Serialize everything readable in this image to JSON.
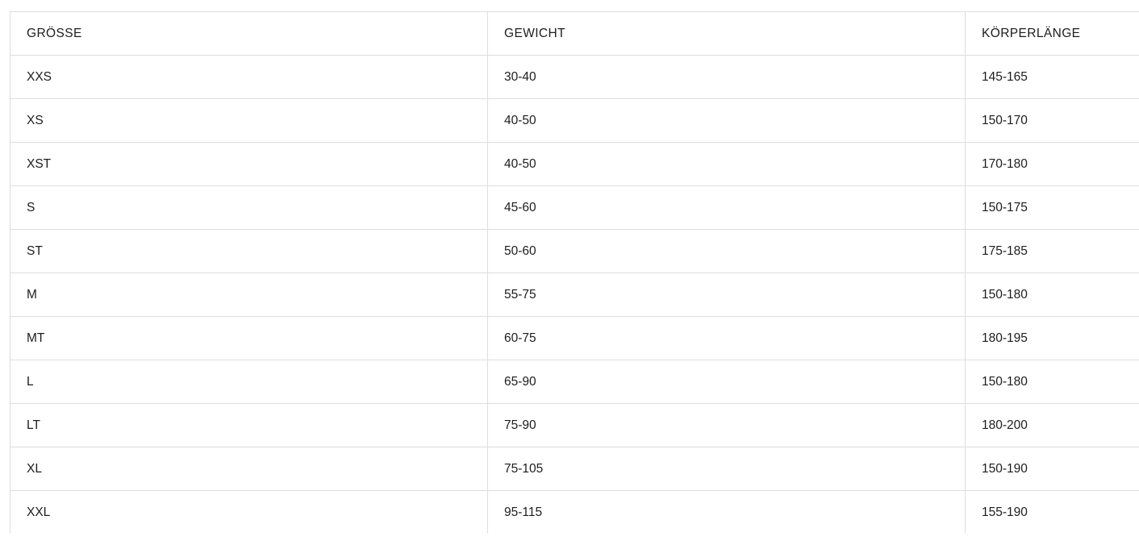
{
  "colors": {
    "background": "#ffffff",
    "border": "#dddddd",
    "text": "#1d1d1d"
  },
  "chart_data": {
    "type": "table",
    "title": "",
    "columns": [
      "GRÖSSE",
      "GEWICHT",
      "KÖRPERLÄNGE"
    ],
    "rows": [
      [
        "XXS",
        "30-40",
        "145-165"
      ],
      [
        "XS",
        "40-50",
        "150-170"
      ],
      [
        "XST",
        "40-50",
        "170-180"
      ],
      [
        "S",
        "45-60",
        "150-175"
      ],
      [
        "ST",
        "50-60",
        "175-185"
      ],
      [
        "M",
        "55-75",
        "150-180"
      ],
      [
        "MT",
        "60-75",
        "180-195"
      ],
      [
        "L",
        "65-90",
        "150-180"
      ],
      [
        "LT",
        "75-90",
        "180-200"
      ],
      [
        "XL",
        "75-105",
        "150-190"
      ],
      [
        "XXL",
        "95-115",
        "155-190"
      ]
    ]
  }
}
